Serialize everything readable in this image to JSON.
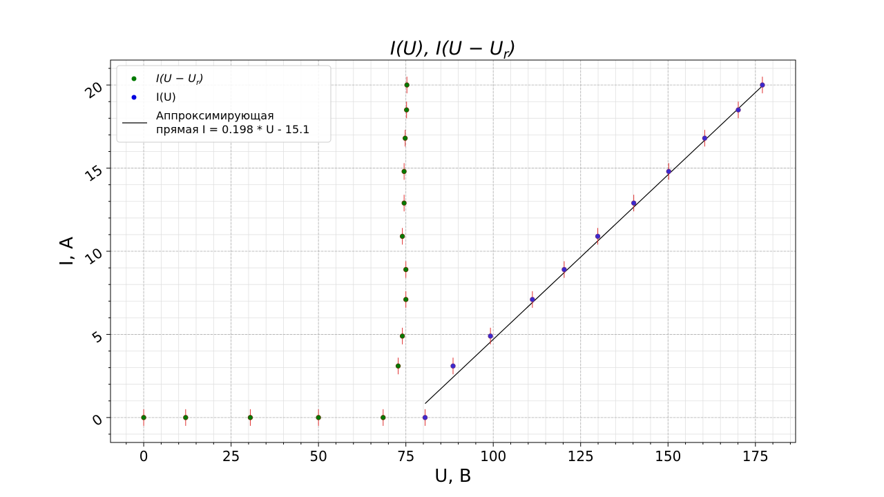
{
  "chart_data": {
    "type": "scatter",
    "title": "I(U),  I(U − U",
    "title_sub": "r",
    "title_end": ")",
    "xlabel": "U, B",
    "ylabel": "I, A",
    "xlim": [
      -9.5,
      186.5
    ],
    "ylim": [
      -1.5,
      21.5
    ],
    "x_ticks": [
      0,
      25,
      50,
      75,
      100,
      125,
      150,
      175
    ],
    "y_ticks": [
      0,
      5,
      10,
      15,
      20
    ],
    "grid": true,
    "minor_grid": true,
    "legend_position": "upper-left",
    "colors": {
      "series_shifted": "#007a00",
      "series_raw": "#0000e0",
      "error_bars": "#e03030",
      "fit_line": "#000000",
      "grid_major": "#b0b0b0",
      "grid_minor": "#e0e0e0"
    },
    "error_y": 0.5,
    "series": [
      {
        "name": "I(U − U",
        "name_sub": "r",
        "name_end": ")",
        "x": [
          0,
          12,
          30.5,
          50,
          68.5,
          72.8,
          74,
          75,
          75,
          74,
          74.5,
          74.5,
          74.8,
          75.2,
          75.3
        ],
        "y": [
          0,
          0,
          0,
          0,
          0,
          3.1,
          4.9,
          7.1,
          8.9,
          10.9,
          12.9,
          14.8,
          16.8,
          18.5,
          20
        ]
      },
      {
        "name": "I(U)",
        "x": [
          80.5,
          88.5,
          99.2,
          111.2,
          120.3,
          129.9,
          140.2,
          150.2,
          160.5,
          170.1,
          177
        ],
        "y": [
          0,
          3.1,
          4.9,
          7.1,
          8.9,
          10.9,
          12.9,
          14.8,
          16.8,
          18.5,
          20
        ]
      }
    ],
    "fit_line": {
      "name_line1": "Аппроксимирующая",
      "name_line2": "прямая I = 0.198 * U - 15.1",
      "slope": 0.198,
      "intercept": -15.1,
      "x_range": [
        80.5,
        177
      ]
    }
  }
}
